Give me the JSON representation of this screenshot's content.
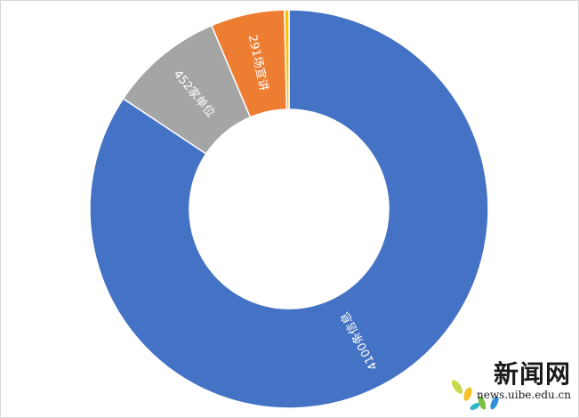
{
  "chart_data": {
    "type": "pie",
    "variant": "donut",
    "slices": [
      {
        "label": "4100条信息",
        "value": 4100,
        "color": "#4472c4"
      },
      {
        "label": "452家单位",
        "value": 452,
        "color": "#a5a5a5"
      },
      {
        "label": "291场宣讲",
        "value": 291,
        "color": "#ed7d31"
      },
      {
        "label": "",
        "value": 18,
        "color": "#ffc000"
      }
    ],
    "legend": "none"
  },
  "watermark": {
    "title": "新闻网",
    "url": "news.uibe.edu.cn"
  }
}
